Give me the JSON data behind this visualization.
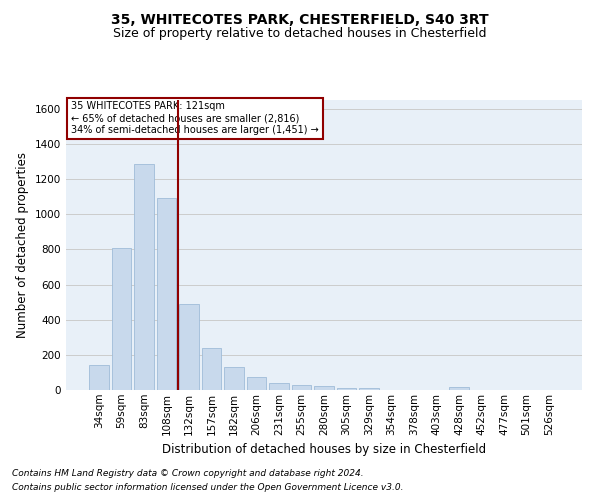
{
  "title1": "35, WHITECOTES PARK, CHESTERFIELD, S40 3RT",
  "title2": "Size of property relative to detached houses in Chesterfield",
  "xlabel": "Distribution of detached houses by size in Chesterfield",
  "ylabel": "Number of detached properties",
  "footer1": "Contains HM Land Registry data © Crown copyright and database right 2024.",
  "footer2": "Contains public sector information licensed under the Open Government Licence v3.0.",
  "annotation_line1": "35 WHITECOTES PARK: 121sqm",
  "annotation_line2": "← 65% of detached houses are smaller (2,816)",
  "annotation_line3": "34% of semi-detached houses are larger (1,451) →",
  "bar_labels": [
    "34sqm",
    "59sqm",
    "83sqm",
    "108sqm",
    "132sqm",
    "157sqm",
    "182sqm",
    "206sqm",
    "231sqm",
    "255sqm",
    "280sqm",
    "305sqm",
    "329sqm",
    "354sqm",
    "378sqm",
    "403sqm",
    "428sqm",
    "452sqm",
    "477sqm",
    "501sqm",
    "526sqm"
  ],
  "bar_values": [
    140,
    810,
    1285,
    1090,
    490,
    240,
    130,
    75,
    42,
    27,
    20,
    14,
    10,
    0,
    0,
    0,
    18,
    0,
    0,
    0,
    0
  ],
  "bar_color": "#c8d9ec",
  "bar_edge_color": "#a0bcd8",
  "vline_x": 3.5,
  "vline_color": "#900000",
  "ylim": [
    0,
    1650
  ],
  "yticks": [
    0,
    200,
    400,
    600,
    800,
    1000,
    1200,
    1400,
    1600
  ],
  "grid_color": "#cccccc",
  "bg_color": "#e8f0f8",
  "annotation_box_color": "#900000",
  "title_fontsize": 10,
  "subtitle_fontsize": 9,
  "axis_label_fontsize": 8.5,
  "tick_fontsize": 7.5,
  "footer_fontsize": 6.5
}
